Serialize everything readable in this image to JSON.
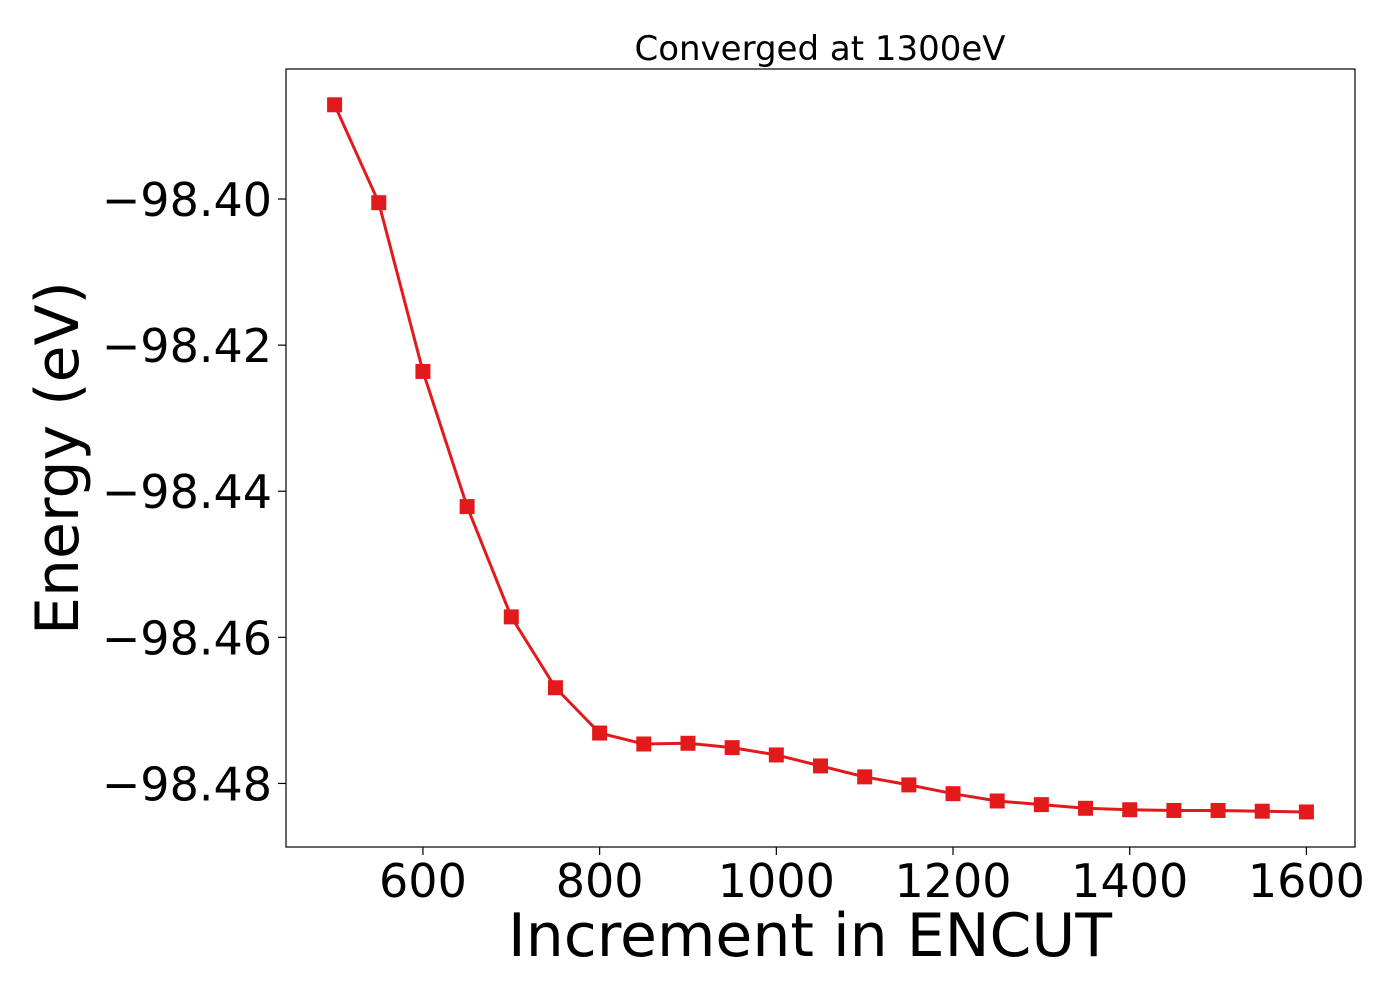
{
  "chart_data": {
    "type": "line",
    "title": "Converged at 1300eV",
    "xlabel": "Increment in ENCUT",
    "ylabel": "Energy (eV)",
    "xlim": [
      445,
      1655
    ],
    "ylim": [
      -98.4887,
      -98.3822
    ],
    "xticks": [
      {
        "value": 600,
        "label": "600"
      },
      {
        "value": 800,
        "label": "800"
      },
      {
        "value": 1000,
        "label": "1000"
      },
      {
        "value": 1200,
        "label": "1200"
      },
      {
        "value": 1400,
        "label": "1400"
      },
      {
        "value": 1600,
        "label": "1600"
      }
    ],
    "yticks": [
      {
        "value": -98.4,
        "label": "−98.40"
      },
      {
        "value": -98.42,
        "label": "−98.42"
      },
      {
        "value": -98.44,
        "label": "−98.44"
      },
      {
        "value": -98.46,
        "label": "−98.46"
      },
      {
        "value": -98.48,
        "label": "−98.48"
      }
    ],
    "grid": false,
    "series": [
      {
        "color": "#e31a1c",
        "marker": "square",
        "x": [
          500,
          550,
          600,
          650,
          700,
          750,
          800,
          850,
          900,
          950,
          1000,
          1050,
          1100,
          1150,
          1200,
          1250,
          1300,
          1350,
          1400,
          1450,
          1500,
          1550,
          1600
        ],
        "y": [
          -98.3871,
          -98.4005,
          -98.4236,
          -98.4421,
          -98.4572,
          -98.4669,
          -98.4731,
          -98.4746,
          -98.4745,
          -98.4751,
          -98.4761,
          -98.4776,
          -98.4791,
          -98.4802,
          -98.4814,
          -98.4824,
          -98.4829,
          -98.4834,
          -98.4836,
          -98.4837,
          -98.4837,
          -98.4838,
          -98.4839
        ]
      }
    ]
  }
}
